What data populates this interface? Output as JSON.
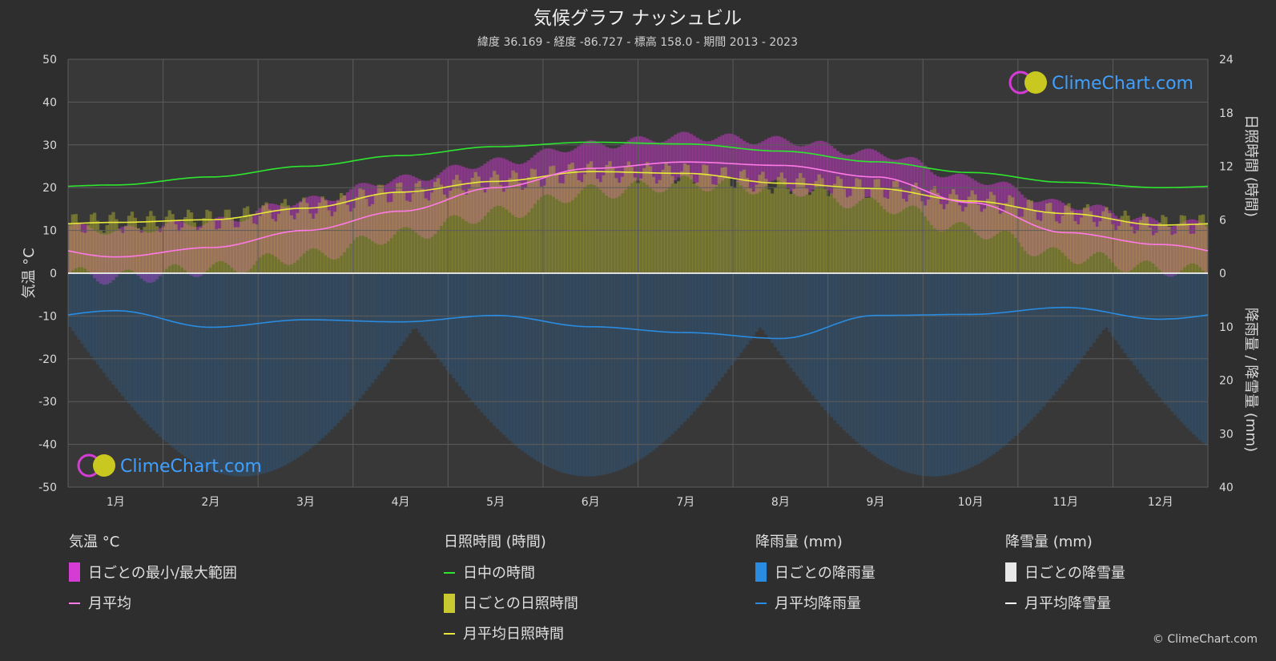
{
  "chart_data": {
    "type": "line",
    "title": "気候グラフ ナッシュビル",
    "subtitle": "緯度 36.169 - 経度 -86.727 - 標高 158.0 - 期間 2013 - 2023",
    "categories": [
      "1月",
      "2月",
      "3月",
      "4月",
      "5月",
      "6月",
      "7月",
      "8月",
      "9月",
      "10月",
      "11月",
      "12月"
    ],
    "left_axis": {
      "label": "気温 °C",
      "range": [
        -50,
        50
      ],
      "ticks": [
        "50",
        "40",
        "30",
        "20",
        "10",
        "0",
        "-10",
        "-20",
        "-30",
        "-40",
        "-50"
      ]
    },
    "right_axis_top": {
      "label": "日照時間 (時間)",
      "range": [
        0,
        24
      ],
      "ticks": [
        "24",
        "18",
        "12",
        "6",
        "0"
      ]
    },
    "right_axis_bottom": {
      "label": "降雨量 / 降雪量 (mm)",
      "range": [
        0,
        40
      ],
      "ticks": [
        "0",
        "10",
        "20",
        "30",
        "40"
      ]
    },
    "series": [
      {
        "name": "日中の時間",
        "axis": "hours",
        "color": "#2ee62e",
        "values": [
          9.9,
          10.8,
          12.0,
          13.2,
          14.2,
          14.7,
          14.5,
          13.7,
          12.5,
          11.3,
          10.2,
          9.6
        ]
      },
      {
        "name": "月平均日照時間",
        "axis": "hours",
        "color": "#e8e83a",
        "values": [
          5.7,
          6.0,
          7.3,
          9.1,
          10.3,
          11.4,
          11.2,
          10.1,
          9.5,
          8.1,
          6.7,
          5.4
        ]
      },
      {
        "name": "月平均",
        "axis": "temp",
        "color": "#ff7ae6",
        "values": [
          3.8,
          6.0,
          10.0,
          14.5,
          20.0,
          24.5,
          26.0,
          25.2,
          22.5,
          16.5,
          9.5,
          6.7
        ]
      },
      {
        "name": "月平均降雨量",
        "axis": "precip",
        "color": "#2a8ce0",
        "values": [
          7.0,
          10.1,
          8.7,
          9.1,
          7.9,
          10.0,
          11.1,
          12.2,
          7.9,
          7.7,
          6.4,
          8.6
        ]
      }
    ],
    "daily_temp_range": {
      "name": "日ごとの最小/最大範囲",
      "min": [
        -1,
        1,
        4,
        9,
        14,
        19,
        21,
        20,
        16,
        10,
        4,
        1
      ],
      "max": [
        10,
        12,
        17,
        22,
        26,
        30,
        32,
        31,
        28,
        22,
        16,
        12
      ]
    },
    "daily_sunshine_name": "日ごとの日照時間",
    "daily_rain_name": "日ごとの降雨量",
    "daily_snow_name": "日ごとの降雪量",
    "monthly_snow_name": "月平均降雪量"
  },
  "legend": {
    "temp": {
      "header": "気温 °C",
      "items": [
        "日ごとの最小/最大範囲",
        "月平均"
      ]
    },
    "sun": {
      "header": "日照時間 (時間)",
      "items": [
        "日中の時間",
        "日ごとの日照時間",
        "月平均日照時間"
      ]
    },
    "rain": {
      "header": "降雨量 (mm)",
      "items": [
        "日ごとの降雨量",
        "月平均降雨量"
      ]
    },
    "snow": {
      "header": "降雪量 (mm)",
      "items": [
        "日ごとの降雪量",
        "月平均降雪量"
      ]
    }
  },
  "logo_text": "ClimeChart.com",
  "copyright": "© ClimeChart.com",
  "colors": {
    "background": "#2e2e2e",
    "plot_bg": "#3a3a3a",
    "grid": "#5a5a5a",
    "daylight": "#2ee62e",
    "sunshine": "#e8e83a",
    "temp_avg": "#ff7ae6",
    "temp_range": "#d43cd4",
    "rain": "#2a8ce0",
    "snow": "#ffffff"
  }
}
